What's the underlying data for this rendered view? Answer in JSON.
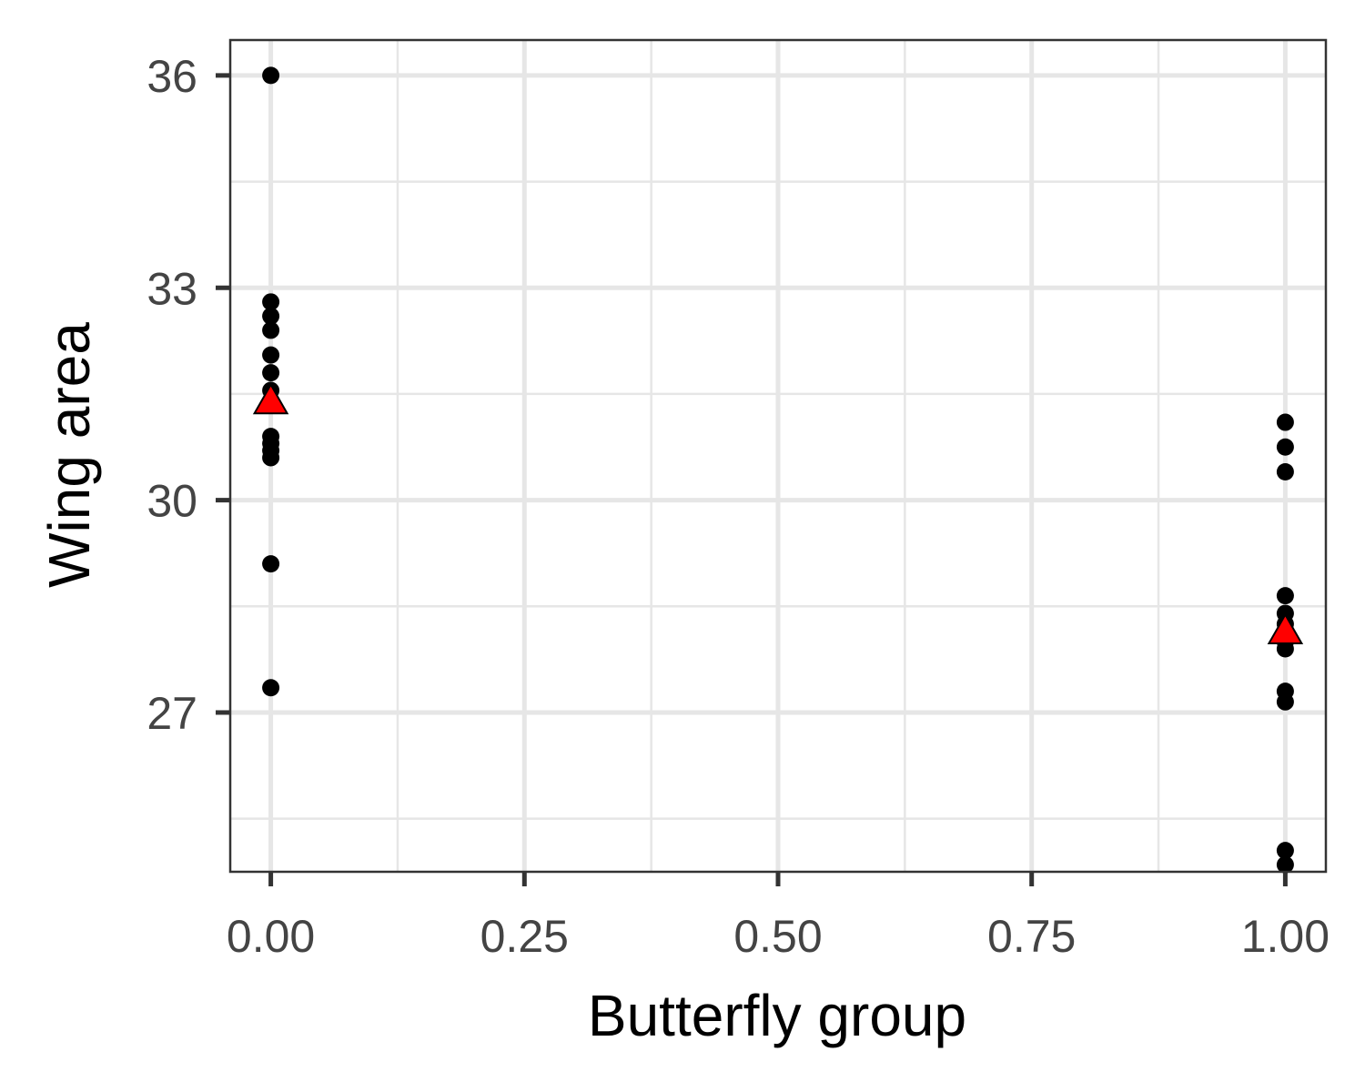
{
  "chart_data": {
    "type": "scatter",
    "title": "",
    "xlabel": "Butterfly group",
    "ylabel": "Wing area",
    "xlim": [
      -0.04,
      1.04
    ],
    "ylim": [
      24.75,
      36.5
    ],
    "x_ticks": [
      0.0,
      0.25,
      0.5,
      0.75,
      1.0
    ],
    "x_tick_labels": [
      "0.00",
      "0.25",
      "0.50",
      "0.75",
      "1.00"
    ],
    "y_ticks": [
      27,
      30,
      33,
      36
    ],
    "y_tick_labels": [
      "27",
      "30",
      "33",
      "36"
    ],
    "grid": true,
    "series": [
      {
        "marker": "circle",
        "color": "#000000",
        "points": [
          {
            "x": 0,
            "y": 36.0
          },
          {
            "x": 0,
            "y": 32.8
          },
          {
            "x": 0,
            "y": 32.6
          },
          {
            "x": 0,
            "y": 32.4
          },
          {
            "x": 0,
            "y": 32.05
          },
          {
            "x": 0,
            "y": 31.8
          },
          {
            "x": 0,
            "y": 31.55
          },
          {
            "x": 0,
            "y": 30.9
          },
          {
            "x": 0,
            "y": 30.8
          },
          {
            "x": 0,
            "y": 30.7
          },
          {
            "x": 0,
            "y": 30.6
          },
          {
            "x": 0,
            "y": 29.1
          },
          {
            "x": 0,
            "y": 27.35
          },
          {
            "x": 1,
            "y": 31.1
          },
          {
            "x": 1,
            "y": 30.75
          },
          {
            "x": 1,
            "y": 30.4
          },
          {
            "x": 1,
            "y": 28.65
          },
          {
            "x": 1,
            "y": 28.4
          },
          {
            "x": 1,
            "y": 28.25
          },
          {
            "x": 1,
            "y": 28.0
          },
          {
            "x": 1,
            "y": 27.9
          },
          {
            "x": 1,
            "y": 27.3
          },
          {
            "x": 1,
            "y": 27.15
          },
          {
            "x": 1,
            "y": 25.05
          },
          {
            "x": 1,
            "y": 24.85
          }
        ]
      },
      {
        "marker": "triangle",
        "color": "#ff0000",
        "points": [
          {
            "x": 0,
            "y": 31.4
          },
          {
            "x": 1,
            "y": 28.15
          }
        ]
      }
    ],
    "colors": {
      "grid": "#e6e6e6",
      "panel_border": "#333333",
      "tick_mark": "#333333",
      "tick_label": "#444444",
      "axis_title": "#000000",
      "point": "#000000",
      "mean_fill": "#ff0000",
      "mean_stroke": "#000000"
    }
  }
}
